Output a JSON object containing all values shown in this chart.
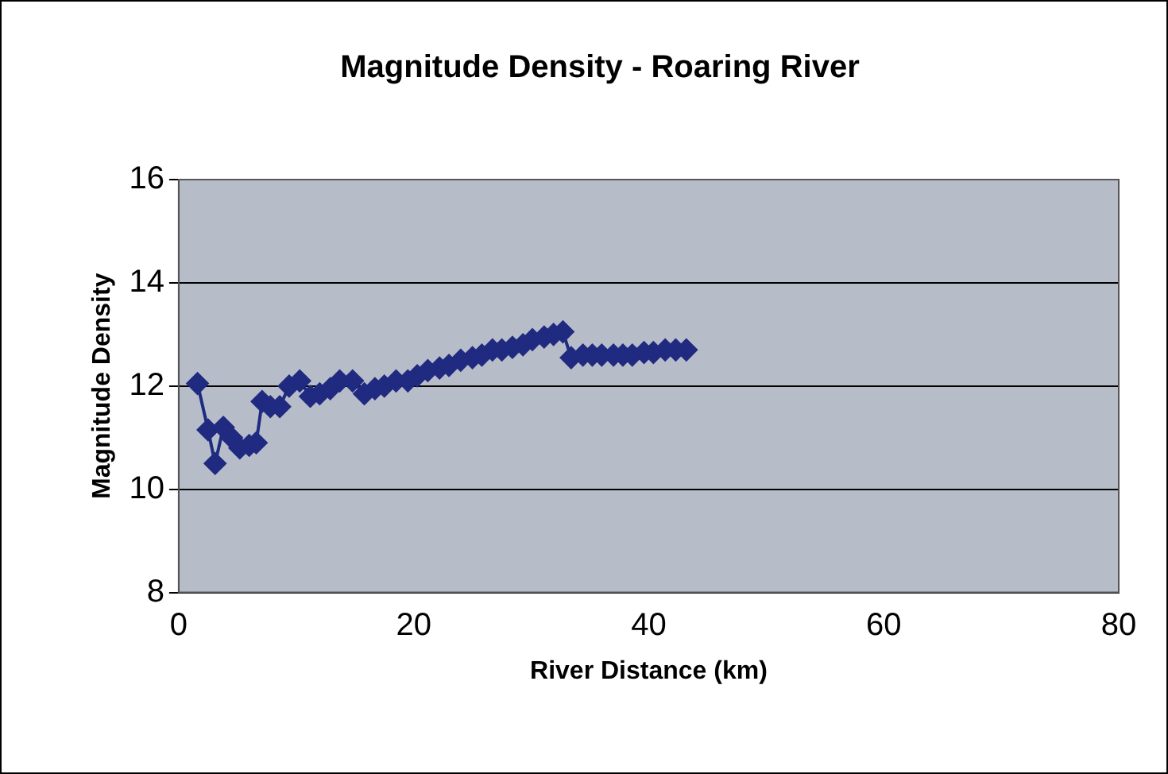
{
  "chart_data": {
    "type": "line",
    "title": "Magnitude Density - Roaring River",
    "xlabel": "River Distance (km)",
    "ylabel": "Magnitude Density",
    "x": [
      1.6,
      2.5,
      3.1,
      3.8,
      4.5,
      5.2,
      6.0,
      6.6,
      7.1,
      7.8,
      8.6,
      9.4,
      10.3,
      11.2,
      12.0,
      12.9,
      13.7,
      14.8,
      15.8,
      16.7,
      17.5,
      18.5,
      19.5,
      20.3,
      21.2,
      22.2,
      23.0,
      24.0,
      25.0,
      25.8,
      26.7,
      27.5,
      28.4,
      29.3,
      30.1,
      31.1,
      31.9,
      32.7,
      33.4,
      34.4,
      35.2,
      36.0,
      37.0,
      37.8,
      38.6,
      39.6,
      40.4,
      41.4,
      42.3,
      43.2
    ],
    "series": [
      {
        "color": "#1f2a80",
        "values": [
          12.05,
          11.15,
          10.5,
          11.2,
          11.0,
          10.8,
          10.85,
          10.9,
          11.7,
          11.6,
          11.6,
          12.0,
          12.1,
          11.8,
          11.85,
          11.95,
          12.1,
          12.1,
          11.85,
          11.95,
          12.0,
          12.1,
          12.1,
          12.2,
          12.3,
          12.35,
          12.4,
          12.5,
          12.55,
          12.6,
          12.7,
          12.7,
          12.75,
          12.8,
          12.9,
          12.95,
          13.0,
          13.05,
          12.55,
          12.6,
          12.6,
          12.6,
          12.6,
          12.6,
          12.6,
          12.65,
          12.65,
          12.7,
          12.7,
          12.7
        ]
      }
    ],
    "xlim": [
      0,
      80
    ],
    "xticks": [
      0,
      20,
      40,
      60,
      80
    ],
    "ylim": [
      8,
      16
    ],
    "yticks": [
      8,
      10,
      12,
      14,
      16
    ],
    "grid": "y",
    "marker": "diamond",
    "line_style": "solid",
    "legend": false
  }
}
